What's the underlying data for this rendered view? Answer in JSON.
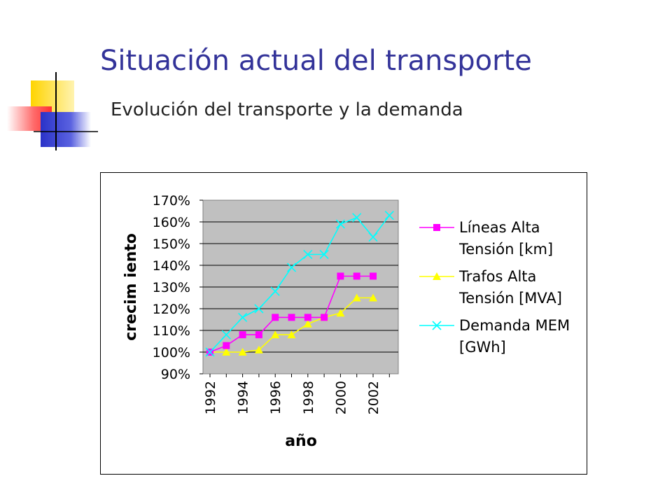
{
  "slide": {
    "title": "Situación actual del transporte",
    "subtitle": "Evolución del  transporte y la demanda"
  },
  "colors": {
    "title": "#333399",
    "plot_bg": "#c0c0c0",
    "lineas": "#ff00ff",
    "trafos": "#ffff00",
    "demanda": "#00ffff"
  },
  "chart_data": {
    "type": "line",
    "title": "",
    "xlabel": "año",
    "ylabel": "crecim iento",
    "x": [
      1992,
      1993,
      1994,
      1995,
      1996,
      1997,
      1998,
      1999,
      2000,
      2001,
      2002,
      2003
    ],
    "xtick_labels": [
      "1992",
      "1994",
      "1996",
      "1998",
      "2000",
      "2002"
    ],
    "ytick_labels": [
      "90%",
      "100%",
      "110%",
      "120%",
      "130%",
      "140%",
      "150%",
      "160%",
      "170%"
    ],
    "ylim": [
      0.9,
      1.7
    ],
    "grid": "horizontal",
    "legend_position": "right",
    "series": [
      {
        "name_lines": [
          "Líneas Alta",
          "Tensión [km]"
        ],
        "marker": "square",
        "color": "#ff00ff",
        "values": [
          1.0,
          1.03,
          1.08,
          1.08,
          1.16,
          1.16,
          1.16,
          1.16,
          1.35,
          1.35,
          1.35,
          null
        ]
      },
      {
        "name_lines": [
          "Trafos Alta",
          "Tensión [MVA]"
        ],
        "marker": "triangle",
        "color": "#ffff00",
        "values": [
          1.0,
          1.0,
          1.0,
          1.01,
          1.08,
          1.08,
          1.13,
          1.16,
          1.18,
          1.25,
          1.25,
          null
        ]
      },
      {
        "name_lines": [
          "Demanda MEM",
          "[GWh]"
        ],
        "marker": "x",
        "color": "#00ffff",
        "values": [
          1.0,
          1.08,
          1.16,
          1.2,
          1.28,
          1.39,
          1.45,
          1.45,
          1.59,
          1.62,
          1.53,
          1.63
        ]
      }
    ]
  }
}
